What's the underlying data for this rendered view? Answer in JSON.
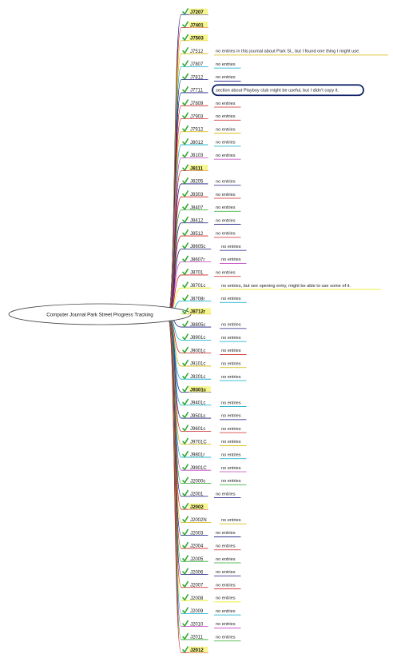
{
  "root": {
    "title": "Computer Journal Park Street Progress Tracking"
  },
  "colors": {
    "highlight": "#f6f68a",
    "check": "#33aa33",
    "callout_border": "#0c2166",
    "palette": [
      "#d4b400",
      "#00a8c8",
      "#cc2222",
      "#1a1a80",
      "#26a626",
      "#c040c0",
      "#e8e800",
      "#333333"
    ]
  },
  "icons": {
    "node": "checkmark-icon"
  },
  "nodes": [
    {
      "label": "J7207",
      "highlight": true,
      "note": "",
      "color": "#1a1a80"
    },
    {
      "label": "J7401",
      "highlight": true,
      "note": "",
      "color": "#cc2222"
    },
    {
      "label": "J7503",
      "highlight": true,
      "note": "",
      "color": "#d4b400"
    },
    {
      "label": "J7512",
      "highlight": false,
      "note": "no entries in this journal about Park St., but I found one thing I might use.",
      "color": "#d4b400"
    },
    {
      "label": "J7807",
      "highlight": false,
      "note": "no entries",
      "color": "#00a8c8"
    },
    {
      "label": "J7812",
      "highlight": false,
      "note": "no entries",
      "color": "#1a1a80"
    },
    {
      "label": "J7711",
      "highlight": false,
      "note": "section about Playboy club might be useful, but I didn't copy it.",
      "callout": true,
      "color": "#1a1a80"
    },
    {
      "label": "J7809",
      "highlight": false,
      "note": "no entries",
      "color": "#cc2222"
    },
    {
      "label": "J7903",
      "highlight": false,
      "note": "no entries",
      "color": "#cc2222"
    },
    {
      "label": "J7912",
      "highlight": false,
      "note": "no entries",
      "color": "#d4b400"
    },
    {
      "label": "J8012",
      "highlight": false,
      "note": "no entries",
      "color": "#00a8c8"
    },
    {
      "label": "J8103",
      "highlight": false,
      "note": "no entries",
      "color": "#c040c0"
    },
    {
      "label": "J8111",
      "highlight": true,
      "note": "",
      "color": "#cc2222"
    },
    {
      "label": "J8205",
      "highlight": false,
      "note": "no entries",
      "color": "#1a1a80"
    },
    {
      "label": "J8303",
      "highlight": false,
      "note": "no entries",
      "color": "#cc2222"
    },
    {
      "label": "J8407",
      "highlight": false,
      "note": "no entries",
      "color": "#26a626"
    },
    {
      "label": "J8412",
      "highlight": false,
      "note": "no entries",
      "color": "#1a1a80"
    },
    {
      "label": "J8512",
      "highlight": false,
      "note": "no entries",
      "color": "#cc2222"
    },
    {
      "label": "J8605c",
      "highlight": false,
      "note": "no entries",
      "color": "#1a1a80"
    },
    {
      "label": "J8607r",
      "highlight": false,
      "note": "no entries",
      "color": "#c040c0"
    },
    {
      "label": "J8701",
      "highlight": false,
      "note": "no entries",
      "color": "#cc2222"
    },
    {
      "label": "J8701c",
      "highlight": false,
      "note": "no entries, but see opening entry, might be able to use some of it.",
      "color": "#e8e800"
    },
    {
      "label": "J8708r",
      "highlight": false,
      "note": "no entries",
      "color": "#00a8c8"
    },
    {
      "label": "J8712r",
      "highlight": true,
      "note": "",
      "color": "#d4b400"
    },
    {
      "label": "J8805c",
      "highlight": false,
      "note": "no entries",
      "color": "#1a1a80"
    },
    {
      "label": "J8901c",
      "highlight": false,
      "note": "no entries",
      "color": "#00a8c8"
    },
    {
      "label": "J9001c",
      "highlight": false,
      "note": "no entries",
      "color": "#cc2222"
    },
    {
      "label": "J9101c",
      "highlight": false,
      "note": "no entries",
      "color": "#d4b400"
    },
    {
      "label": "J9201c",
      "highlight": false,
      "note": "no entries",
      "color": "#00a8c8"
    },
    {
      "label": "J9301c",
      "highlight": true,
      "note": "",
      "color": "#1a1a80"
    },
    {
      "label": "J9401c",
      "highlight": false,
      "note": "no entries",
      "color": "#00a8c8"
    },
    {
      "label": "J9501c",
      "highlight": false,
      "note": "no entries",
      "color": "#1a1a80"
    },
    {
      "label": "J9601c",
      "highlight": false,
      "note": "no entries",
      "color": "#cc2222"
    },
    {
      "label": "J9701C",
      "highlight": false,
      "note": "no entries",
      "color": "#d4b400"
    },
    {
      "label": "J9801r",
      "highlight": false,
      "note": "no entries",
      "color": "#00a8c8"
    },
    {
      "label": "J9901C",
      "highlight": false,
      "note": "no entries",
      "color": "#c040c0"
    },
    {
      "label": "J2000c",
      "highlight": false,
      "note": "no entries",
      "color": "#26a626"
    },
    {
      "label": "J2001",
      "highlight": false,
      "note": "no entries",
      "color": "#1a1a80"
    },
    {
      "label": "J2002",
      "highlight": true,
      "note": "",
      "color": "#cc2222"
    },
    {
      "label": "J2002N",
      "highlight": false,
      "note": "no entries",
      "color": "#d4b400"
    },
    {
      "label": "J2003",
      "highlight": false,
      "note": "no entries",
      "color": "#1a1a80"
    },
    {
      "label": "J2004",
      "highlight": false,
      "note": "no entries",
      "color": "#cc2222"
    },
    {
      "label": "J2005",
      "highlight": false,
      "note": "no entries",
      "color": "#26a626"
    },
    {
      "label": "J2006",
      "highlight": false,
      "note": "no entries",
      "color": "#1a1a80"
    },
    {
      "label": "J2007",
      "highlight": false,
      "note": "no entries",
      "color": "#cc2222"
    },
    {
      "label": "J2008",
      "highlight": false,
      "note": "no entries",
      "color": "#e8e800"
    },
    {
      "label": "J2009",
      "highlight": false,
      "note": "no entries",
      "color": "#00a8c8"
    },
    {
      "label": "J2010",
      "highlight": false,
      "note": "no entries",
      "color": "#c040c0"
    },
    {
      "label": "J2011",
      "highlight": false,
      "note": "no entries",
      "color": "#26a626"
    },
    {
      "label": "J2012",
      "highlight": true,
      "note": "",
      "color": "#cc2222"
    }
  ]
}
